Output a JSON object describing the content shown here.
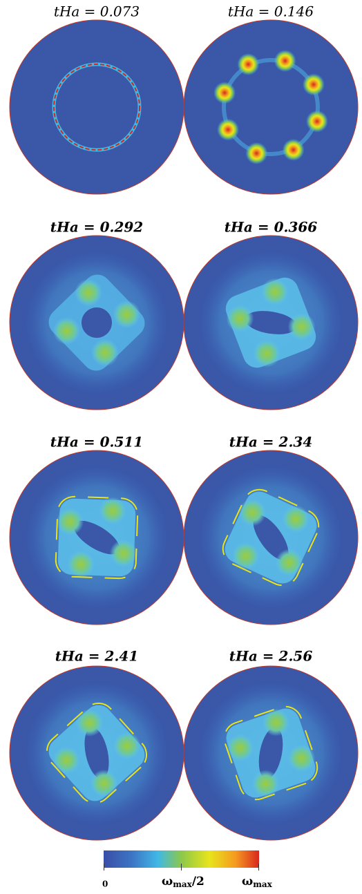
{
  "panels": [
    {
      "label": "tHa = 0.073"
    },
    {
      "label": "tHa = 0.146"
    },
    {
      "label": "tHa = 0.292"
    },
    {
      "label": "tHa = 0.366"
    },
    {
      "label": "tHa = 0.511"
    },
    {
      "label": "tHa = 2.34"
    },
    {
      "label": "tHa = 2.41"
    },
    {
      "label": "tHa = 2.56"
    }
  ],
  "colorbar": {
    "labels": [
      {
        "text": "0"
      },
      {
        "symbol": "ω",
        "subscript": "max",
        "suffix": "/2"
      },
      {
        "symbol": "ω",
        "subscript": "max"
      }
    ]
  }
}
